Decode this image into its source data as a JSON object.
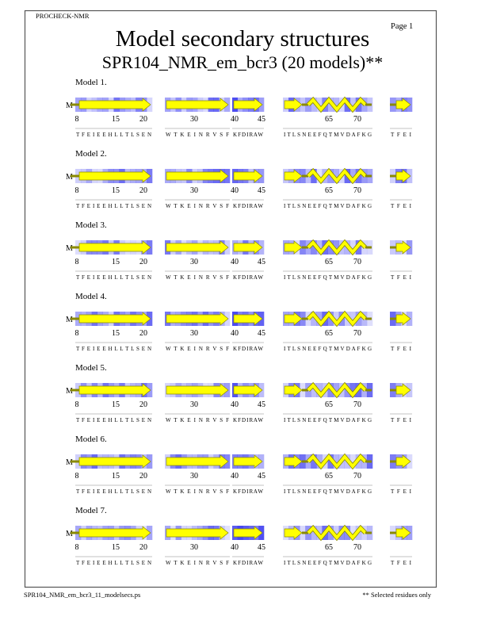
{
  "header": {
    "program": "PROCHECK-NMR",
    "page_label": "Page 1",
    "title": "Model secondary structures",
    "subtitle": "SPR104_NMR_em_bcr3 (20 models)**"
  },
  "footer": {
    "filename": "SPR104_NMR_em_bcr3_11_modelsecs.ps",
    "note": "** Selected residues only"
  },
  "chain_marker": "M",
  "colors": {
    "strand_fill": "#ffff00",
    "strand_stroke": "#8a8a00",
    "shading_base": "#3333ee",
    "border": "#555555"
  },
  "segments": [
    {
      "sequence": "T F E I E E H L L T L S E N",
      "ticks": [
        "8",
        "15",
        "20"
      ],
      "structure": "strand"
    },
    {
      "sequence": "W T K E I N R V S F",
      "ticks": [
        "30"
      ],
      "structure": "strand"
    },
    {
      "sequence": "K F D I R A W",
      "ticks": [
        "40",
        "45"
      ],
      "structure": "strand"
    },
    {
      "sequence": "I T L S N E E F Q T M V D A F K G",
      "ticks": [
        "65",
        "70"
      ],
      "structure": "strand+helix"
    },
    {
      "sequence": "T F E I",
      "ticks": [],
      "structure": "strand"
    }
  ],
  "models": [
    {
      "label": "Model 1."
    },
    {
      "label": "Model 2."
    },
    {
      "label": "Model 3."
    },
    {
      "label": "Model 4."
    },
    {
      "label": "Model 5."
    },
    {
      "label": "Model 6."
    },
    {
      "label": "Model 7."
    }
  ]
}
